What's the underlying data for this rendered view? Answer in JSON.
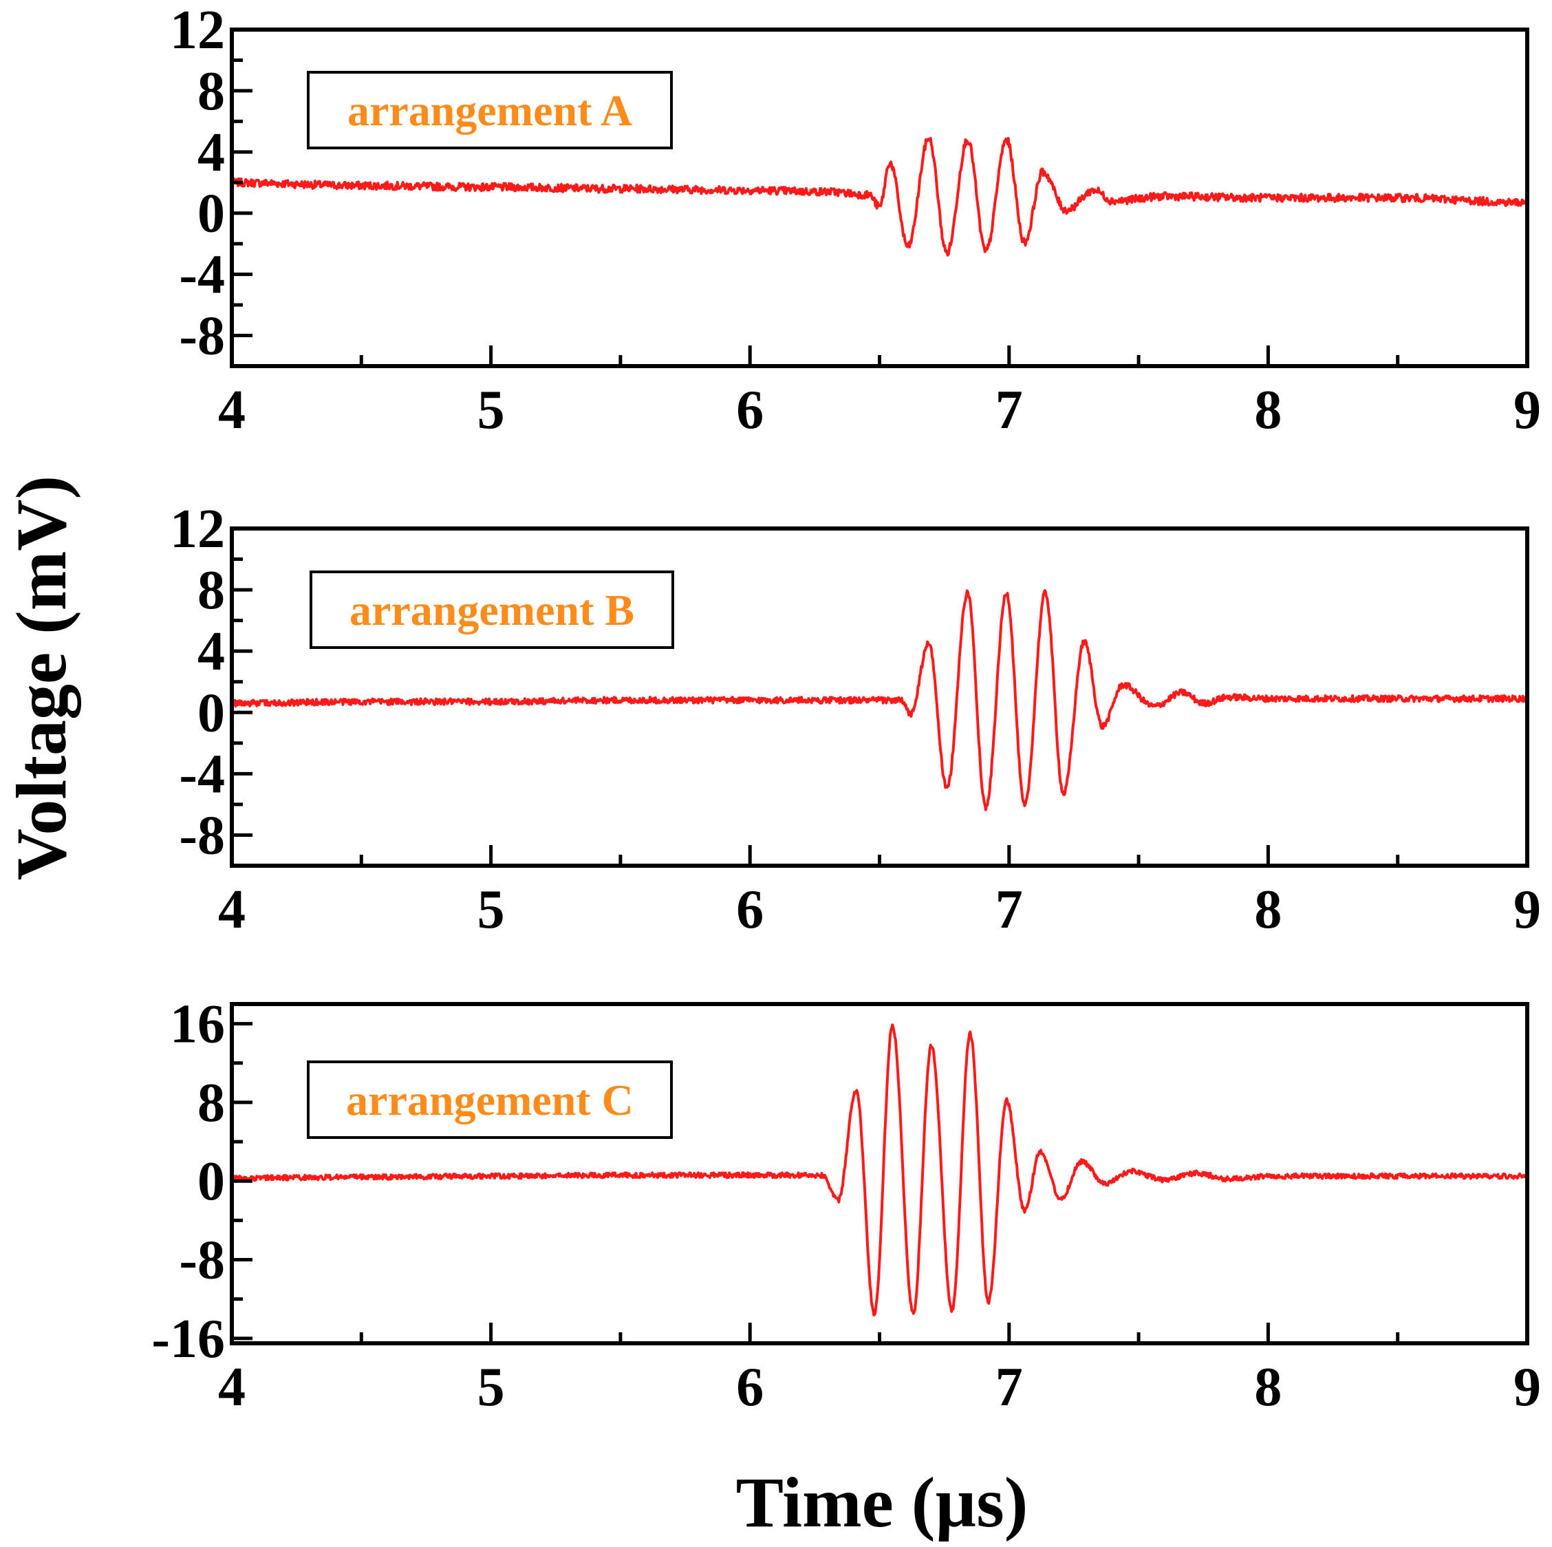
{
  "figure": {
    "ylabel": "Voltage (mV)",
    "xlabel": "Time (µs)"
  },
  "colors": {
    "trace": "#ff1a1a",
    "label_text": "#ff8c1a",
    "axis": "#000000"
  },
  "chart_data": [
    {
      "type": "line",
      "label": "arrangement A",
      "xlim": [
        4,
        9
      ],
      "ylim": [
        -10,
        12
      ],
      "xticks": [
        4,
        5,
        6,
        7,
        8,
        9
      ],
      "yticks": [
        -8,
        -4,
        0,
        4,
        8,
        12
      ],
      "ytick_labels": [
        "-8",
        "-4",
        "0",
        "4",
        "8",
        "12"
      ],
      "x": [
        4.0,
        4.5,
        5.0,
        5.5,
        6.0,
        6.3,
        6.46,
        6.5,
        6.54,
        6.61,
        6.69,
        6.76,
        6.84,
        6.91,
        6.99,
        7.06,
        7.13,
        7.22,
        7.33,
        7.4,
        7.6,
        8.0,
        8.5,
        9.0
      ],
      "y": [
        2.0,
        1.8,
        1.7,
        1.6,
        1.5,
        1.4,
        1.2,
        0.4,
        3.3,
        -2.2,
        4.9,
        -2.6,
        4.8,
        -2.5,
        4.8,
        -1.9,
        2.7,
        0.2,
        1.5,
        0.8,
        1.1,
        1.0,
        1.0,
        0.7
      ],
      "noise": 0.25
    },
    {
      "type": "line",
      "label": "arrangement B",
      "xlim": [
        4,
        9
      ],
      "ylim": [
        -10,
        12
      ],
      "xticks": [
        4,
        5,
        6,
        7,
        8,
        9
      ],
      "yticks": [
        -8,
        -4,
        0,
        4,
        8,
        12
      ],
      "ytick_labels": [
        "-8",
        "-4",
        "0",
        "4",
        "8",
        "12"
      ],
      "x": [
        4.0,
        4.5,
        5.0,
        5.5,
        6.0,
        6.4,
        6.58,
        6.62,
        6.69,
        6.76,
        6.84,
        6.91,
        6.99,
        7.06,
        7.14,
        7.21,
        7.29,
        7.36,
        7.44,
        7.56,
        7.67,
        7.75,
        7.85,
        8.0,
        8.5,
        9.0
      ],
      "y": [
        0.6,
        0.7,
        0.7,
        0.8,
        0.8,
        0.8,
        0.8,
        -0.1,
        4.5,
        -5.0,
        7.8,
        -6.2,
        7.8,
        -6.1,
        7.8,
        -5.3,
        4.6,
        -0.9,
        1.8,
        0.4,
        1.3,
        0.6,
        1.0,
        0.9,
        0.9,
        0.9
      ],
      "noise": 0.2
    },
    {
      "type": "line",
      "label": "arrangement C",
      "xlim": [
        4,
        9
      ],
      "ylim": [
        -16.5,
        18
      ],
      "xticks": [
        4,
        5,
        6,
        7,
        8,
        9
      ],
      "yticks": [
        -16,
        -8,
        0,
        8,
        16
      ],
      "ytick_labels": [
        "-16",
        "-8",
        "0",
        "8",
        "16"
      ],
      "x": [
        4.0,
        4.5,
        5.0,
        5.5,
        6.0,
        6.28,
        6.34,
        6.41,
        6.48,
        6.55,
        6.63,
        6.7,
        6.78,
        6.85,
        6.92,
        6.99,
        7.06,
        7.12,
        7.2,
        7.28,
        7.37,
        7.47,
        7.6,
        7.72,
        7.85,
        8.0,
        8.5,
        9.0
      ],
      "y": [
        0.3,
        0.4,
        0.5,
        0.6,
        0.6,
        0.6,
        -2.0,
        9.2,
        -13.5,
        15.8,
        -13.5,
        13.8,
        -13.2,
        15.0,
        -12.3,
        8.2,
        -3.0,
        3.0,
        -1.8,
        2.0,
        -0.3,
        1.0,
        0.1,
        0.8,
        0.2,
        0.5,
        0.5,
        0.5
      ],
      "noise": 0.25
    }
  ]
}
